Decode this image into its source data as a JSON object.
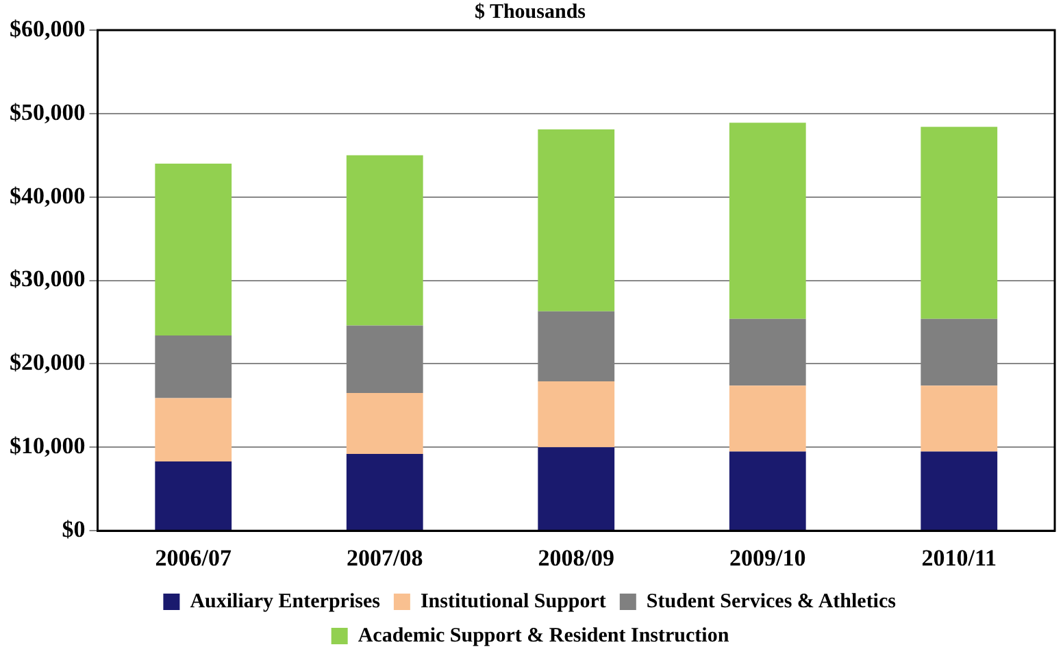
{
  "chart_data": {
    "type": "bar",
    "title": "$ Thousands",
    "stacked": true,
    "categories": [
      "2006/07",
      "2007/08",
      "2008/09",
      "2009/10",
      "2010/11"
    ],
    "series": [
      {
        "name": "Auxiliary Enterprises",
        "color": "#1a1a6e",
        "values": [
          8300,
          9200,
          10000,
          9500,
          9500
        ]
      },
      {
        "name": "Institutional Support",
        "color": "#f9c090",
        "values": [
          7600,
          7300,
          7900,
          7900,
          7900
        ]
      },
      {
        "name": "Student Services & Athletics",
        "color": "#808080",
        "values": [
          7500,
          8100,
          8400,
          8000,
          8000
        ]
      },
      {
        "name": "Academic Support & Resident Instruction",
        "color": "#92d050",
        "values": [
          20600,
          20400,
          21800,
          23500,
          23000
        ]
      }
    ],
    "ylim": [
      0,
      60000
    ],
    "yticks": [
      {
        "value": 0,
        "label": "$0"
      },
      {
        "value": 10000,
        "label": "$10,000"
      },
      {
        "value": 20000,
        "label": "$20,000"
      },
      {
        "value": 30000,
        "label": "$30,000"
      },
      {
        "value": 40000,
        "label": "$40,000"
      },
      {
        "value": 50000,
        "label": "$50,000"
      },
      {
        "value": 60000,
        "label": "$60,000"
      }
    ],
    "grid": "y",
    "legend": "bottom"
  }
}
